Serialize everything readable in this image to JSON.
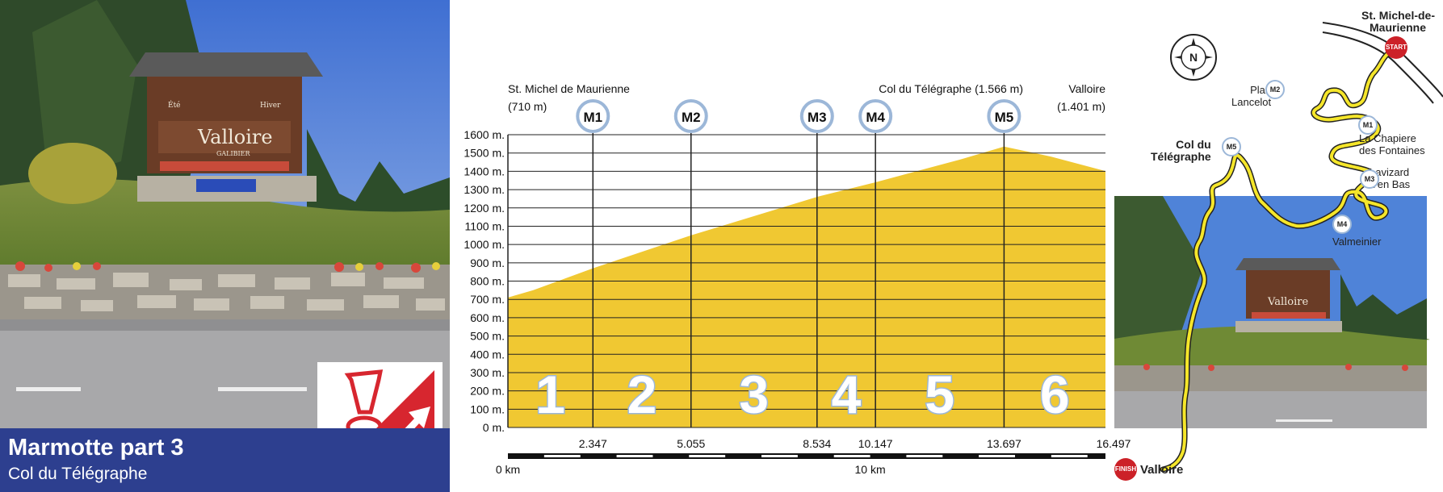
{
  "panel": {
    "title": "Marmotte part 3",
    "subtitle": "Col du Télégraphe"
  },
  "colors": {
    "profile_fill": "#f0c832",
    "route_yellow": "#f5e62a",
    "banner_blue": "#2d3f8f",
    "marker_ring": "#9cb7d8",
    "endpoint_red": "#cc2128",
    "logo_red": "#d7262f"
  },
  "icons": [
    "compass-icon",
    "climb-sign-icon",
    "start-marker",
    "finish-marker"
  ],
  "chart_data": {
    "type": "area",
    "xlabel": "",
    "ylabel": "",
    "x_unit": "km",
    "y_unit": "m.",
    "ylim": [
      0,
      1600
    ],
    "xlim": [
      0,
      16.497
    ],
    "grid": true,
    "y_ticks": [
      0,
      100,
      200,
      300,
      400,
      500,
      600,
      700,
      800,
      900,
      1000,
      1100,
      1200,
      1300,
      1400,
      1500,
      1600
    ],
    "y_tick_labels": [
      "0 m.",
      "100 m.",
      "200 m.",
      "300 m.",
      "400 m.",
      "500 m.",
      "600 m.",
      "700 m.",
      "800 m.",
      "900 m.",
      "1000 m.",
      "1100 m.",
      "1200 m.",
      "1300 m.",
      "1400 m.",
      "1500 m.",
      "1600 m."
    ],
    "x_scale_labels": [
      {
        "x": 0,
        "label": "0 km"
      },
      {
        "x": 10,
        "label": "10 km"
      }
    ],
    "profile": {
      "x": [
        0,
        0.7,
        2.347,
        5.055,
        8.534,
        10.147,
        12.5,
        13.697,
        15,
        16.497
      ],
      "y": [
        710,
        750,
        870,
        1050,
        1260,
        1340,
        1465,
        1535,
        1480,
        1401
      ]
    },
    "markers": [
      {
        "id": "M1",
        "x": 2.347,
        "label": "2.347"
      },
      {
        "id": "M2",
        "x": 5.055,
        "label": "5.055"
      },
      {
        "id": "M3",
        "x": 8.534,
        "label": "8.534"
      },
      {
        "id": "M4",
        "x": 10.147,
        "label": "10.147"
      },
      {
        "id": "M5",
        "x": 13.697,
        "label": "13.697"
      }
    ],
    "end_label": "16.497",
    "sections": [
      "1",
      "2",
      "3",
      "4",
      "5",
      "6"
    ],
    "annotations": {
      "start": [
        "St. Michel de Maurienne",
        "(710 m)"
      ],
      "summit": "Col du Télégraphe (1.566 m)",
      "finish": [
        "Valloire",
        "(1.401 m)"
      ]
    }
  },
  "map": {
    "start_town": [
      "St. Michel-de-",
      "Maurienne"
    ],
    "start_badge": "START",
    "finish_badge": "FINISH",
    "finish_town": "Valloire",
    "col": [
      "Col du",
      "Télégraphe"
    ],
    "places": {
      "m1": [
        "La Chapiere",
        "des Fontaines"
      ],
      "m2": [
        "Plan",
        "Lancelot"
      ],
      "m3": [
        "Lavizard",
        "d'en Bas"
      ],
      "m4": "Valmeinier"
    },
    "compass_letter": "N",
    "badges": [
      "M1",
      "M2",
      "M3",
      "M4",
      "M5"
    ]
  },
  "photos": {
    "sign_lines": [
      "Été",
      "Hiver",
      "Valloire",
      "GALIBIER"
    ]
  }
}
